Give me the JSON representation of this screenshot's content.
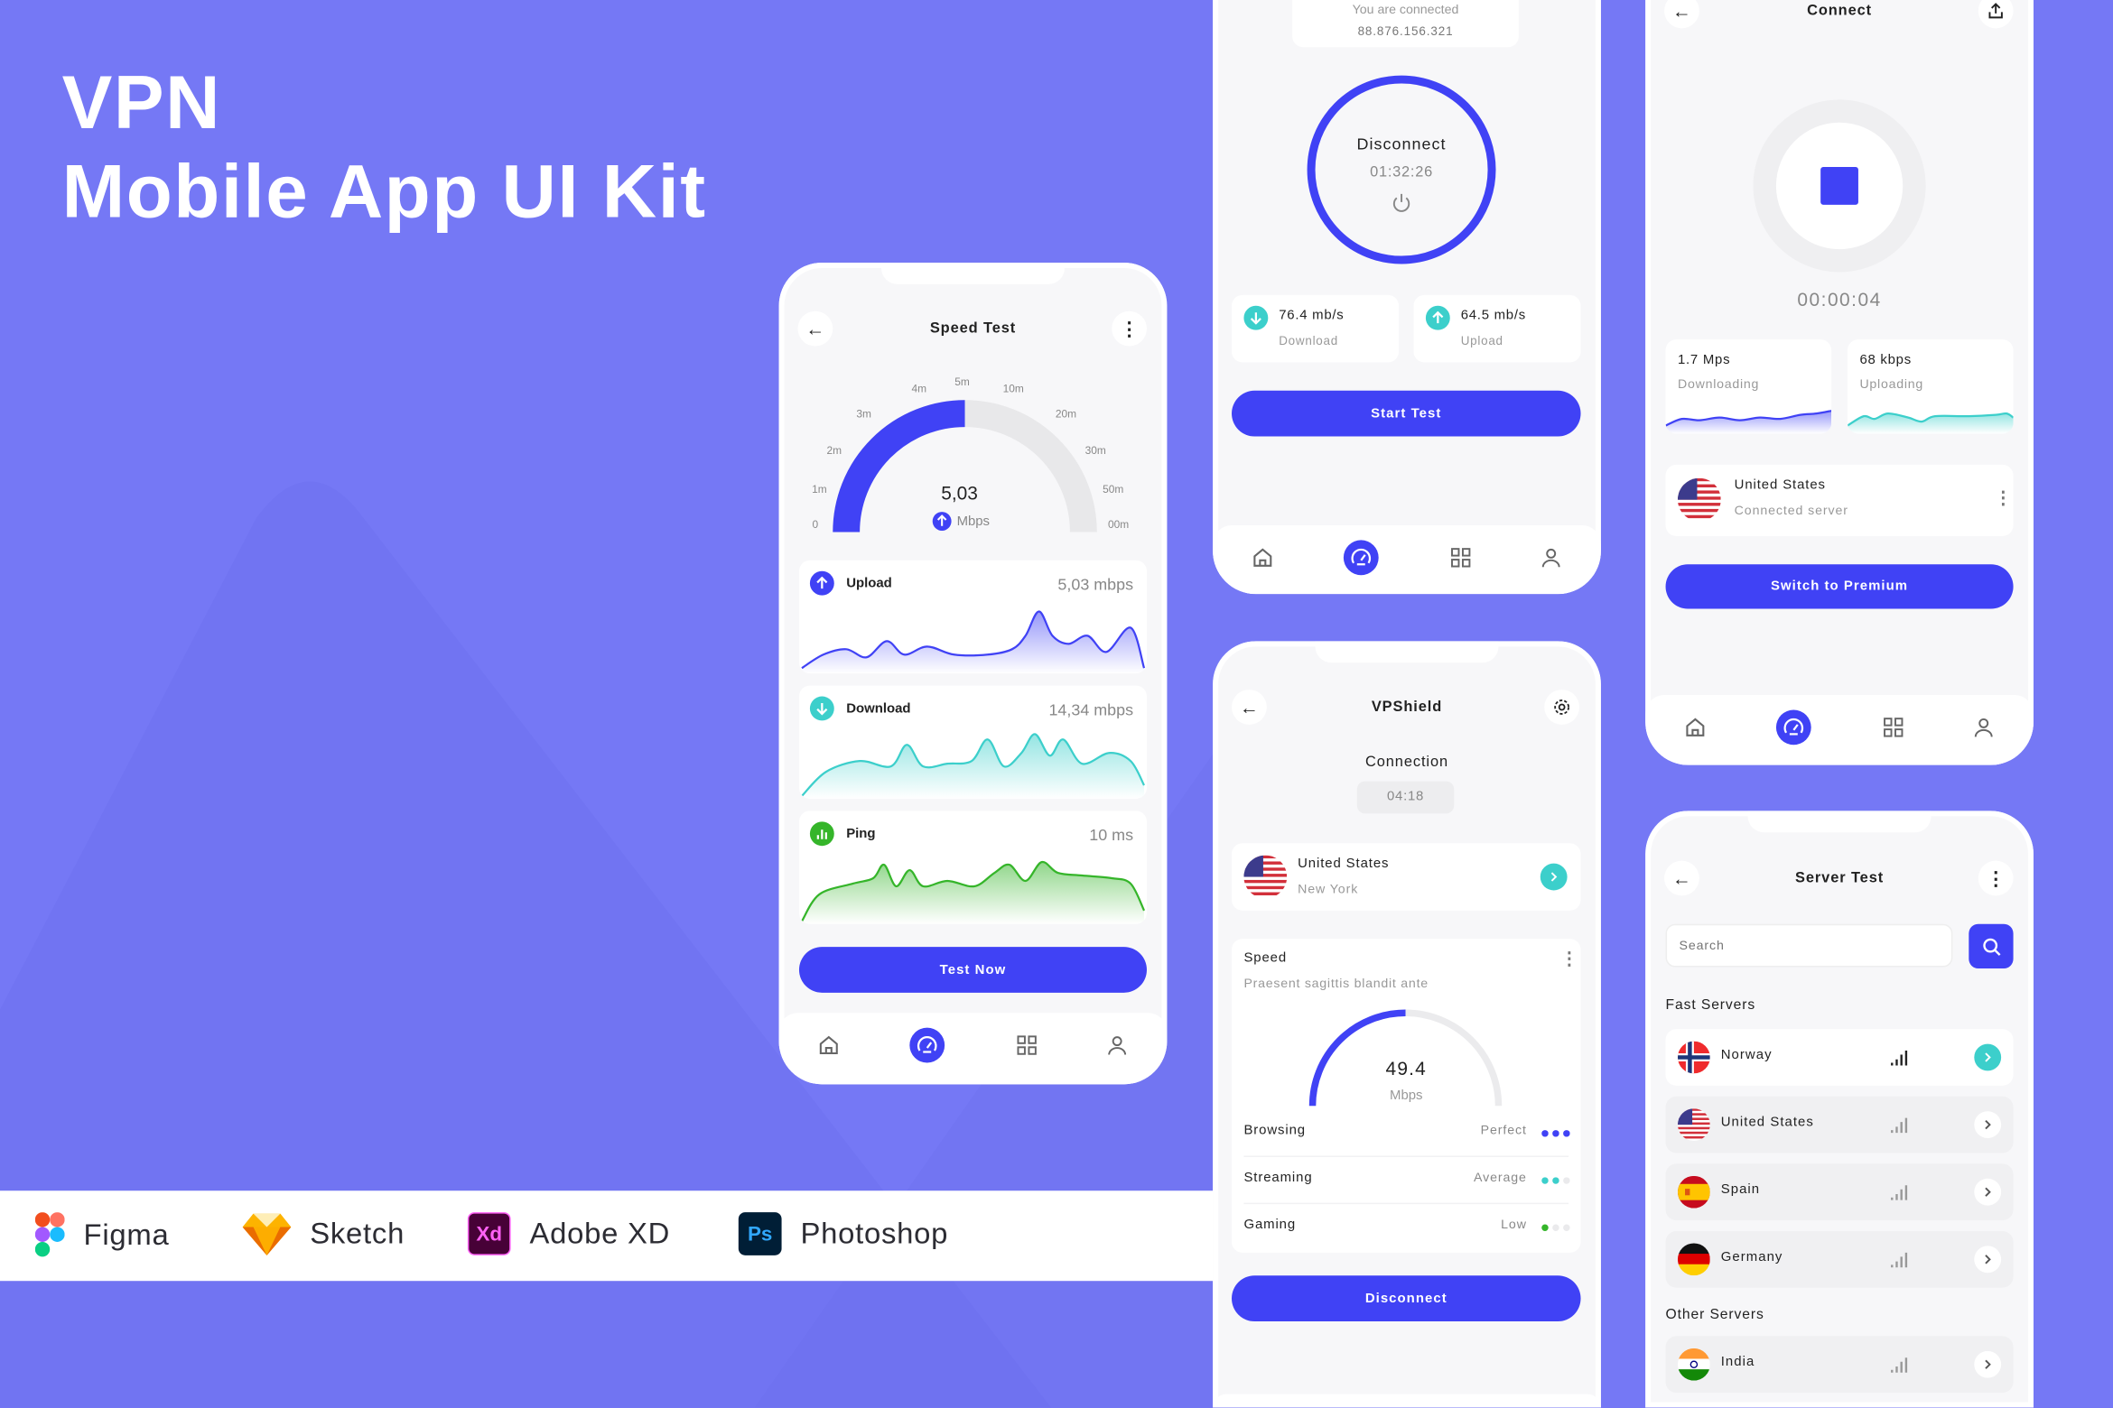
{
  "hero": {
    "line1": "VPN",
    "line2": "Mobile App UI Kit"
  },
  "tools": [
    {
      "name": "Figma",
      "icon": "figma-logo"
    },
    {
      "name": "Sketch",
      "icon": "sketch-logo"
    },
    {
      "name": "Adobe XD",
      "icon": "adobe-xd-logo",
      "badge": "Xd"
    },
    {
      "name": "Photoshop",
      "icon": "photoshop-logo",
      "badge": "Ps"
    }
  ],
  "colors": {
    "background": "#7578F5",
    "primary": "#4042F5",
    "teal": "#3CCFCB",
    "green": "#35B52A",
    "card": "#FFFFFF",
    "screen": "#F7F7F9"
  },
  "speed_test": {
    "title": "Speed Test",
    "gauge": {
      "value": "5,03",
      "unit": "Mbps",
      "fill_fraction": 0.5,
      "ticks": [
        "0",
        "1m",
        "2m",
        "3m",
        "4m",
        "5m",
        "10m",
        "20m",
        "30m",
        "50m",
        "00m"
      ]
    },
    "upload": {
      "label": "Upload",
      "value": "5,03 mbps"
    },
    "download": {
      "label": "Download",
      "value": "14,34 mbps"
    },
    "ping": {
      "label": "Ping",
      "value": "10 ms"
    },
    "button": "Test Now"
  },
  "connected": {
    "status": "You are connected",
    "ip": "88.876.156.321",
    "circle_label": "Disconnect",
    "timer": "01:32:26",
    "download": {
      "value": "76.4 mb/s",
      "label": "Download"
    },
    "upload": {
      "value": "64.5 mb/s",
      "label": "Upload"
    },
    "button": "Start Test"
  },
  "connect": {
    "title": "Connect",
    "timer": "00:00:04",
    "download": {
      "value": "1.7 Mps",
      "label": "Downloading"
    },
    "upload": {
      "value": "68 kbps",
      "label": "Uploading"
    },
    "server": {
      "country": "United States",
      "subtitle": "Connected server"
    },
    "button": "Switch to Premium"
  },
  "vpshield": {
    "title": "VPShield",
    "connection_label": "Connection",
    "connection_time": "04:18",
    "location": {
      "country": "United States",
      "city": "New York"
    },
    "speed": {
      "title": "Speed",
      "subtitle": "Praesent sagittis blandit ante",
      "value": "49.4",
      "unit": "Mbps",
      "fill_fraction": 0.5
    },
    "quality": [
      {
        "label": "Browsing",
        "rating": "Perfect",
        "level": 3
      },
      {
        "label": "Streaming",
        "rating": "Average",
        "level": 2
      },
      {
        "label": "Gaming",
        "rating": "Low",
        "level": 1
      }
    ],
    "button": "Disconnect"
  },
  "server_test": {
    "title": "Server Test",
    "search_placeholder": "Search",
    "fast_label": "Fast Servers",
    "fast_servers": [
      {
        "name": "Norway",
        "selected": true
      },
      {
        "name": "United States",
        "selected": false
      },
      {
        "name": "Spain",
        "selected": false
      },
      {
        "name": "Germany",
        "selected": false
      }
    ],
    "other_label": "Other Servers",
    "other_servers": [
      {
        "name": "India",
        "selected": false
      }
    ]
  }
}
